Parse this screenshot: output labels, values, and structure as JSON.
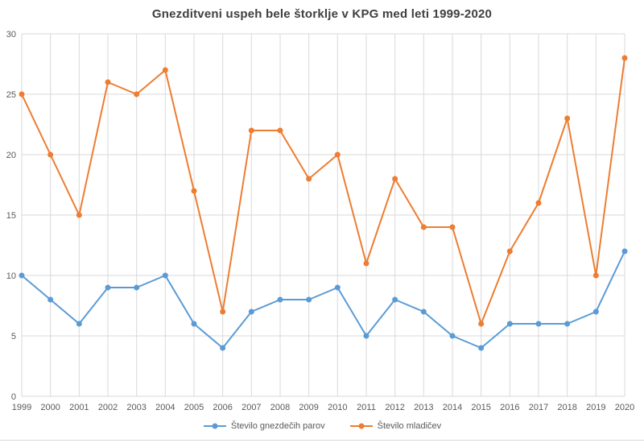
{
  "title": "Gnezditveni uspeh bele štorklje v KPG med leti 1999-2020",
  "chart_data": {
    "type": "line",
    "x": [
      "1999",
      "2000",
      "2001",
      "2002",
      "2003",
      "2004",
      "2005",
      "2006",
      "2007",
      "2008",
      "2009",
      "2010",
      "2011",
      "2012",
      "2013",
      "2014",
      "2015",
      "2016",
      "2017",
      "2018",
      "2019",
      "2020"
    ],
    "series": [
      {
        "name": "Število gnezdečih parov",
        "color": "#5B9BD5",
        "values": [
          10,
          8,
          6,
          9,
          9,
          10,
          6,
          4,
          7,
          8,
          8,
          9,
          5,
          8,
          7,
          5,
          4,
          6,
          6,
          6,
          7,
          12
        ]
      },
      {
        "name": "Število mladičev",
        "color": "#ED7D31",
        "values": [
          25,
          20,
          15,
          26,
          25,
          27,
          17,
          7,
          22,
          22,
          18,
          20,
          11,
          18,
          14,
          14,
          6,
          12,
          16,
          23,
          10,
          28
        ]
      }
    ],
    "xlabel": "",
    "ylabel": "",
    "ylim": [
      0,
      30
    ],
    "y_ticks": [
      0,
      5,
      10,
      15,
      20,
      25,
      30
    ],
    "grid": true,
    "marker": "circle",
    "legend_position": "bottom"
  },
  "colors": {
    "gridline": "#D9D9D9",
    "tick_label": "#595959",
    "title": "#3F3F3F",
    "legend_label": "#595959",
    "chart_border": "#D6D6D6",
    "background": "#FFFFFF"
  }
}
